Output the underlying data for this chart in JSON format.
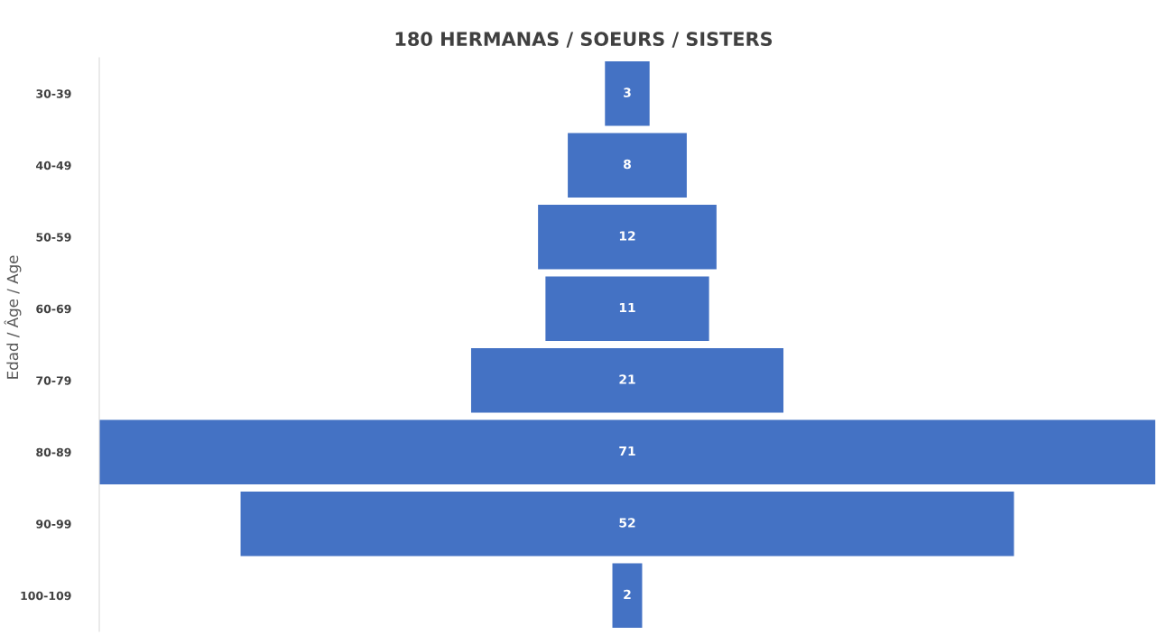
{
  "chart_data": {
    "type": "other",
    "title": "180 HERMANAS / SOEURS / SISTERS",
    "ylabel": "Edad / Âge / Age",
    "categories": [
      "30-39",
      "40-49",
      "50-59",
      "60-69",
      "70-79",
      "80-89",
      "90-99",
      "100-109"
    ],
    "values": [
      3,
      8,
      12,
      11,
      21,
      71,
      52,
      2
    ],
    "color": "#4472c4",
    "data_labels": true
  }
}
